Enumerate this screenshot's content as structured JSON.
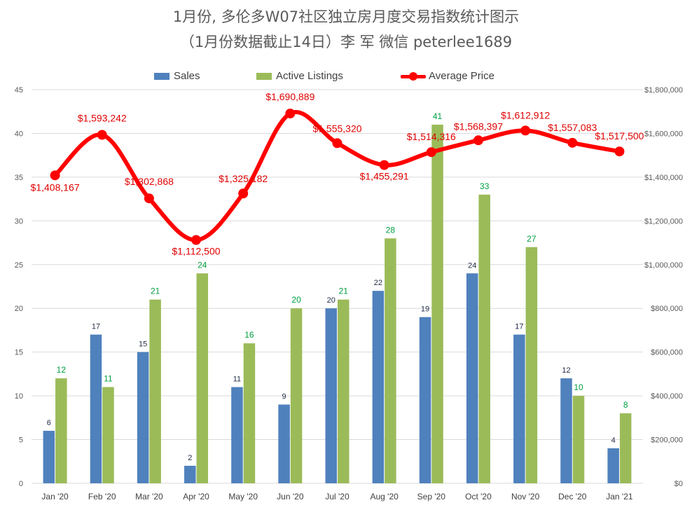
{
  "chart_data": {
    "type": "bar",
    "title": "1月份, 多伦多W07社区独立房月度交易指数统计图示",
    "subtitle": "（1月份数据截止14日）李 军  微信  peterlee1689",
    "categories": [
      "Jan '20",
      "Feb '20",
      "Mar '20",
      "Apr '20",
      "May '20",
      "Jun '20",
      "Jul '20",
      "Aug '20",
      "Sep '20",
      "Oct '20",
      "Nov '20",
      "Dec '20",
      "Jan '21"
    ],
    "series": [
      {
        "name": "Sales",
        "type": "bar",
        "axis": "left",
        "color": "#4f81bd",
        "values": [
          6,
          17,
          15,
          2,
          11,
          9,
          20,
          22,
          19,
          24,
          17,
          12,
          4
        ]
      },
      {
        "name": "Active Listings",
        "type": "bar",
        "axis": "left",
        "color": "#9bbb59",
        "values": [
          12,
          11,
          21,
          24,
          16,
          20,
          21,
          28,
          41,
          33,
          27,
          10,
          8
        ]
      },
      {
        "name": "Average Price",
        "type": "line",
        "axis": "right",
        "color": "#ff0000",
        "values": [
          1408167,
          1593242,
          1302868,
          1112500,
          1325182,
          1690889,
          1555320,
          1455291,
          1514316,
          1568397,
          1612912,
          1557083,
          1517500
        ],
        "labels": [
          "$1,408,167",
          "$1,593,242",
          "$1,302,868",
          "$1,112,500",
          "$1,325,182",
          "$1,690,889",
          "$1,555,320",
          "$1,455,291",
          "$1,514,316",
          "$1,568,397",
          "$1,612,912",
          "$1,557,083",
          "$1,517,500"
        ]
      }
    ],
    "ylim_left": [
      0,
      45
    ],
    "yticks_left": [
      "0",
      "5",
      "10",
      "15",
      "20",
      "25",
      "30",
      "35",
      "40",
      "45"
    ],
    "ylim_right": [
      0,
      1800000
    ],
    "yticks_right": [
      "$0",
      "$200,000",
      "$400,000",
      "$600,000",
      "$800,000",
      "$1,000,000",
      "$1,200,000",
      "$1,400,000",
      "$1,600,000",
      "$1,800,000"
    ],
    "grid": true,
    "legend_position": "top-center"
  }
}
